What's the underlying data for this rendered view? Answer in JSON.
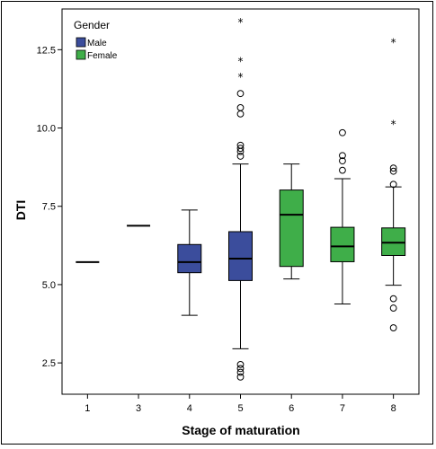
{
  "chart_data": {
    "type": "boxplot",
    "xlabel": "Stage of maturation",
    "ylabel": "DTI",
    "ylim": [
      1.5,
      13.8
    ],
    "y_ticks": [
      "2.5",
      "5.0",
      "7.5",
      "10.0",
      "12.5"
    ],
    "y_tick_values": [
      2.5,
      5.0,
      7.5,
      10.0,
      12.5
    ],
    "categories": [
      "1",
      "3",
      "4",
      "5",
      "6",
      "7",
      "8"
    ],
    "legend": {
      "title": "Gender",
      "placement": "top-left",
      "items": [
        {
          "label": "Male",
          "color": "#3b4d9c"
        },
        {
          "label": "Female",
          "color": "#3fae49"
        }
      ]
    },
    "grid": false,
    "boxes": [
      {
        "category": "1",
        "group": "Male",
        "min": 5.72,
        "q1": 5.72,
        "median": 5.72,
        "q3": 5.72,
        "max": 5.72,
        "outliers": [],
        "extremes": []
      },
      {
        "category": "3",
        "group": "Male",
        "min": 6.88,
        "q1": 6.88,
        "median": 6.88,
        "q3": 6.88,
        "max": 6.88,
        "outliers": [],
        "extremes": []
      },
      {
        "category": "4",
        "group": "Male",
        "min": 4.02,
        "q1": 5.38,
        "median": 5.72,
        "q3": 6.28,
        "max": 7.38,
        "outliers": [],
        "extremes": []
      },
      {
        "category": "5",
        "group": "Male",
        "min": 2.95,
        "q1": 5.13,
        "median": 5.83,
        "q3": 6.69,
        "max": 8.85,
        "outliers": [
          2.05,
          2.2,
          2.32,
          2.45,
          9.1,
          9.25,
          9.35,
          9.45,
          10.45,
          10.65,
          11.1
        ],
        "extremes": [
          11.65,
          12.15,
          13.4
        ]
      },
      {
        "category": "6",
        "group": "Female",
        "min": 5.18,
        "q1": 5.58,
        "median": 7.23,
        "q3": 8.02,
        "max": 8.85,
        "outliers": [],
        "extremes": []
      },
      {
        "category": "7",
        "group": "Female",
        "min": 4.38,
        "q1": 5.73,
        "median": 6.22,
        "q3": 6.83,
        "max": 8.38,
        "outliers": [
          8.65,
          8.95,
          9.12,
          9.85
        ],
        "extremes": []
      },
      {
        "category": "8",
        "group": "Female",
        "min": 4.98,
        "q1": 5.93,
        "median": 6.34,
        "q3": 6.81,
        "max": 8.12,
        "outliers": [
          3.62,
          4.25,
          4.55,
          8.2,
          8.62,
          8.72
        ],
        "extremes": [
          10.15,
          12.75
        ]
      }
    ]
  }
}
